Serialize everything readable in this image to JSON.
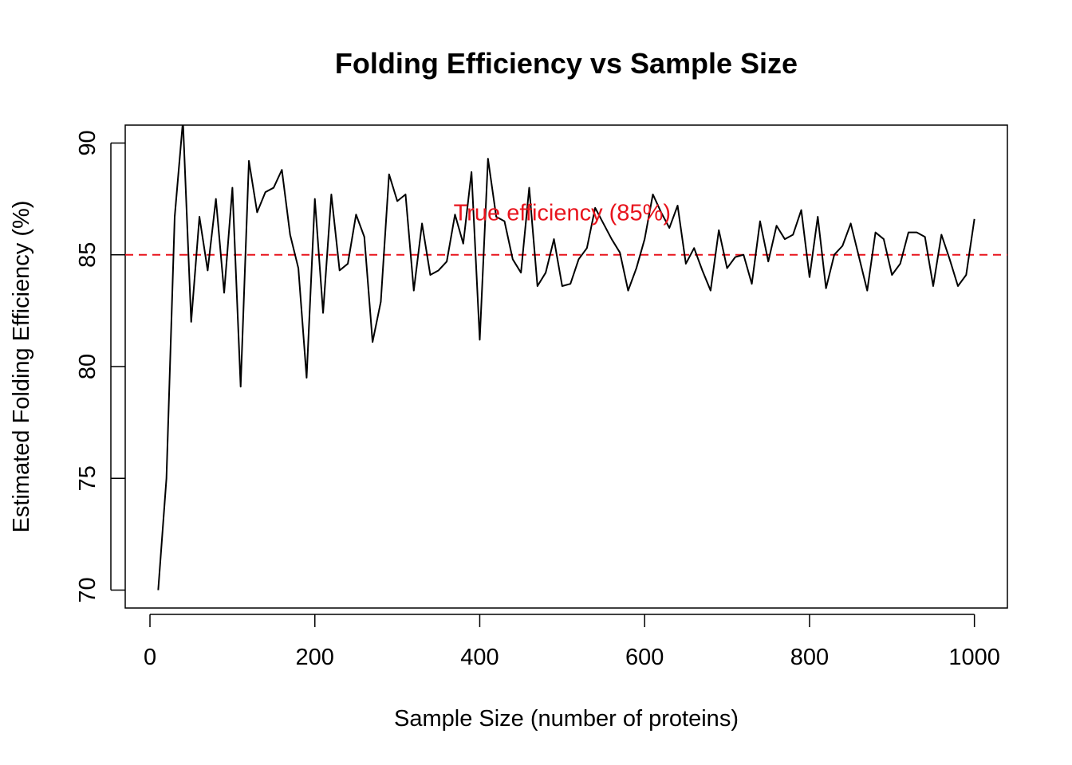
{
  "chart_data": {
    "type": "line",
    "title": "Folding Efficiency vs Sample Size",
    "xlabel": "Sample Size (number of proteins)",
    "ylabel": "Estimated Folding Efficiency (%)",
    "xlim": [
      -30,
      1040
    ],
    "ylim": [
      69.2,
      90.8
    ],
    "x_ticks": [
      0,
      200,
      400,
      600,
      800,
      1000
    ],
    "y_ticks": [
      70,
      75,
      80,
      85,
      90
    ],
    "grid": false,
    "legend": "none",
    "colors": {
      "line": "#000000",
      "reference": "#e8141d",
      "annotation": "#e8141d"
    },
    "reference_line": {
      "y": 85,
      "style": "dashed"
    },
    "annotation": {
      "text": "True efficiency (85%)",
      "x": 500,
      "y": 86.9
    },
    "series": [
      {
        "x": [
          10,
          20,
          30,
          40,
          50,
          60,
          70,
          80,
          90,
          100,
          110,
          120,
          130,
          140,
          150,
          160,
          170,
          180,
          190,
          200,
          210,
          220,
          230,
          240,
          250,
          260,
          270,
          280,
          290,
          300,
          310,
          320,
          330,
          340,
          350,
          360,
          370,
          380,
          390,
          400,
          410,
          420,
          430,
          440,
          450,
          460,
          470,
          480,
          490,
          500,
          510,
          520,
          530,
          540,
          550,
          560,
          570,
          580,
          590,
          600,
          610,
          620,
          630,
          640,
          650,
          660,
          670,
          680,
          690,
          700,
          710,
          720,
          730,
          740,
          750,
          760,
          770,
          780,
          790,
          800,
          810,
          820,
          830,
          840,
          850,
          860,
          870,
          880,
          890,
          900,
          910,
          920,
          930,
          940,
          950,
          960,
          970,
          980,
          990,
          1000
        ],
        "y": [
          70.0,
          75.0,
          86.7,
          91.0,
          82.0,
          86.7,
          84.3,
          87.5,
          83.3,
          88.0,
          79.1,
          89.2,
          86.9,
          87.8,
          88.0,
          88.8,
          85.9,
          84.4,
          79.5,
          87.5,
          82.4,
          87.7,
          84.3,
          84.6,
          86.8,
          85.8,
          81.1,
          82.9,
          88.6,
          87.4,
          87.7,
          83.4,
          86.4,
          84.1,
          84.3,
          84.7,
          86.8,
          85.5,
          88.7,
          81.2,
          89.3,
          86.7,
          86.5,
          84.8,
          84.2,
          88.0,
          83.6,
          84.2,
          85.7,
          83.6,
          83.7,
          84.8,
          85.3,
          87.1,
          86.4,
          85.7,
          85.1,
          83.4,
          84.4,
          85.7,
          87.7,
          86.9,
          86.2,
          87.2,
          84.6,
          85.3,
          84.3,
          83.4,
          86.1,
          84.4,
          84.9,
          85.0,
          83.7,
          86.5,
          84.7,
          86.3,
          85.7,
          85.9,
          87.0,
          84.0,
          86.7,
          83.5,
          85.0,
          85.4,
          86.4,
          84.9,
          83.4,
          86.0,
          85.7,
          84.1,
          84.6,
          86.0,
          86.0,
          85.8,
          83.6,
          85.9,
          84.8,
          83.6,
          84.1,
          86.6
        ]
      }
    ]
  }
}
